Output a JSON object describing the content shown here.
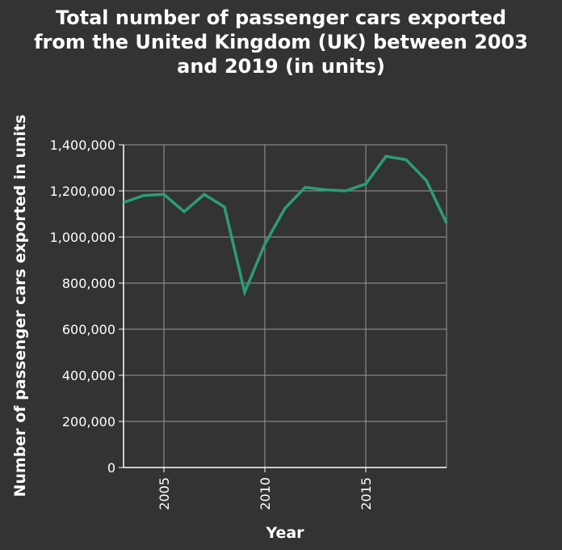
{
  "chart_data": {
    "type": "line",
    "title_lines": [
      "Total number of passenger cars exported",
      "from the United Kingdom (UK) between 2003",
      "and 2019 (in units)"
    ],
    "xlabel": "Year",
    "ylabel": "Number of passenger cars exported in units",
    "xlim": [
      2003,
      2019
    ],
    "ylim": [
      0,
      1400000
    ],
    "x_ticks": [
      2005,
      2010,
      2015
    ],
    "y_ticks": [
      0,
      200000,
      400000,
      600000,
      800000,
      1000000,
      1200000,
      1400000
    ],
    "y_tick_labels": [
      "0",
      "200,000",
      "400,000",
      "600,000",
      "800,000",
      "1,000,000",
      "1,200,000",
      "1,400,000"
    ],
    "grid": true,
    "series": [
      {
        "x": [
          2003,
          2004,
          2005,
          2006,
          2007,
          2008,
          2009,
          2010,
          2011,
          2012,
          2013,
          2014,
          2015,
          2016,
          2017,
          2018,
          2019
        ],
        "values": [
          1150000,
          1180000,
          1185000,
          1110000,
          1185000,
          1130000,
          760000,
          970000,
          1125000,
          1215000,
          1205000,
          1200000,
          1230000,
          1350000,
          1335000,
          1245000,
          1060000
        ],
        "color": "#2a9d78"
      }
    ]
  }
}
